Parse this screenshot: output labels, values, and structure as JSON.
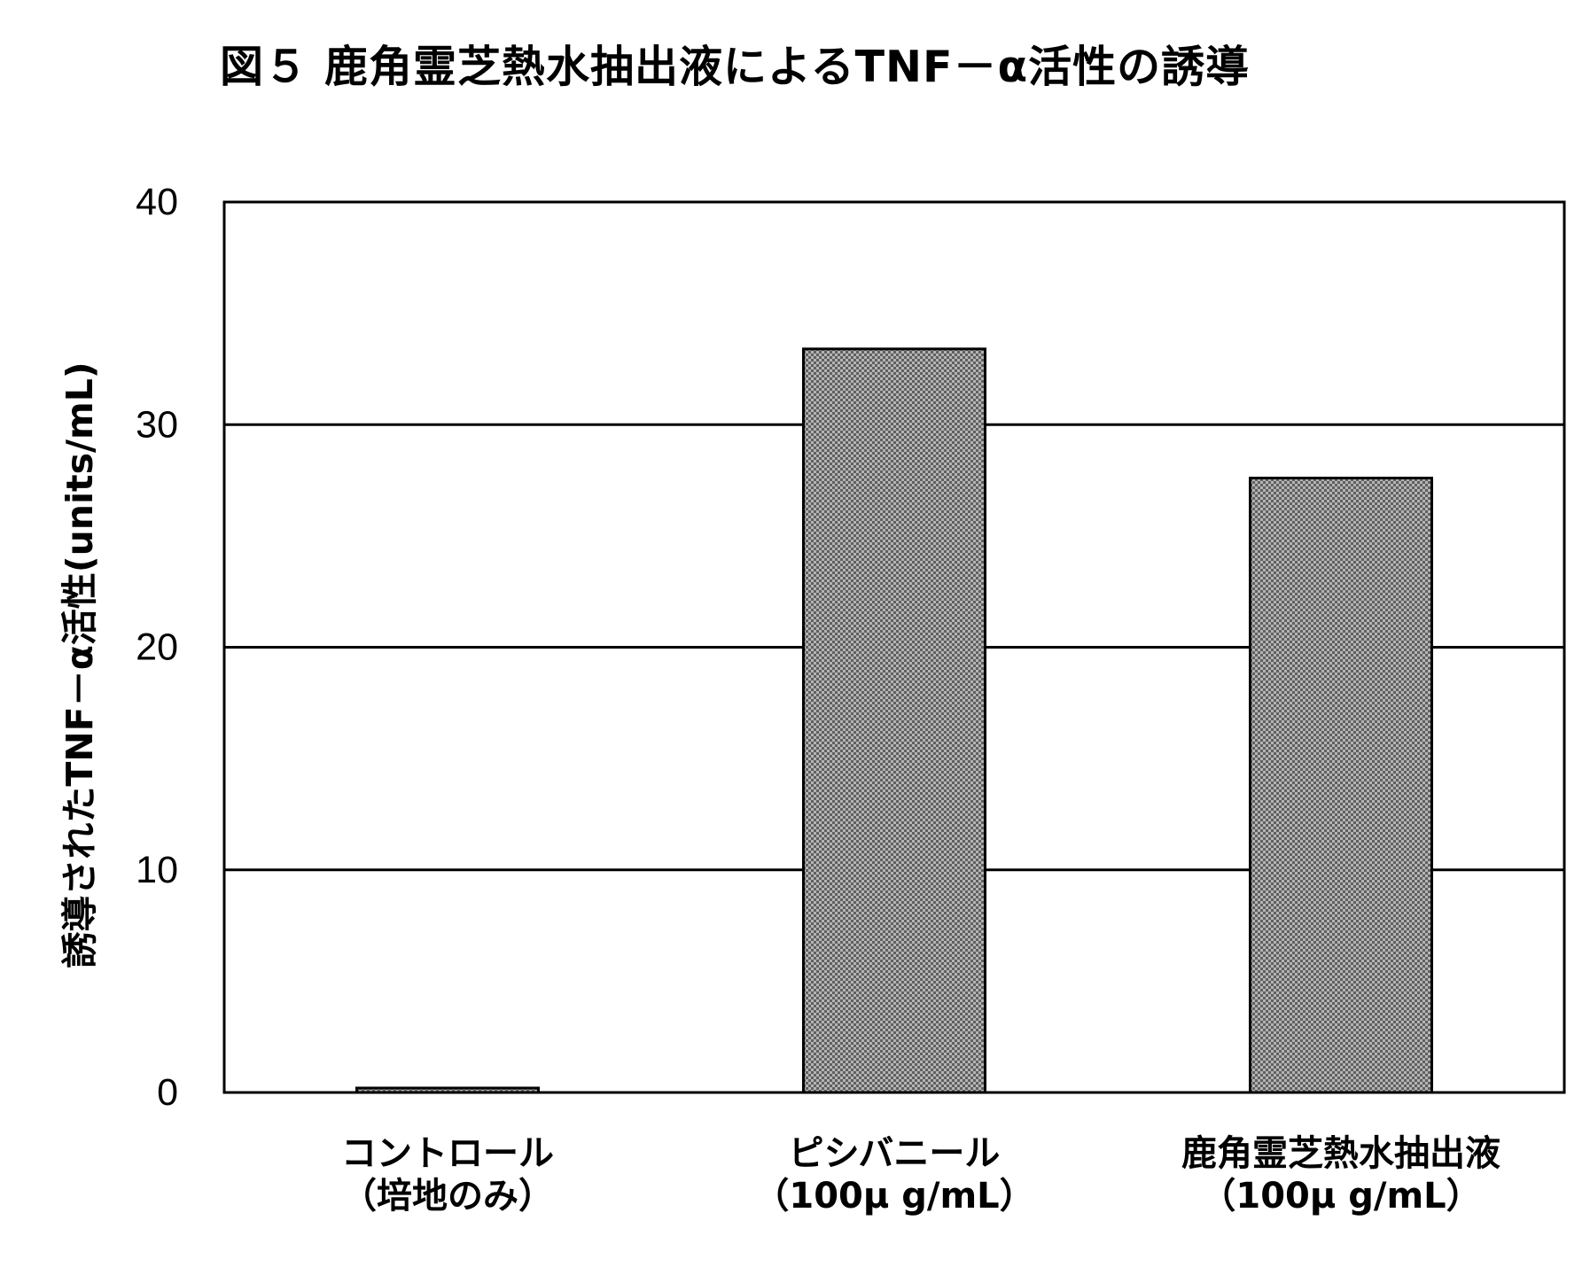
{
  "chart_data": {
    "type": "bar",
    "title": "図５ 鹿角霊芝熱水抽出液によるTNF－α活性の誘導",
    "ylabel": "誘導されたTNF－α活性(units/mL)",
    "xlabel": "",
    "ylim": [
      0,
      40
    ],
    "yticks": [
      0,
      10,
      20,
      30,
      40
    ],
    "grid": true,
    "categories": [
      [
        "コントロール",
        "（培地のみ）"
      ],
      [
        "ピシバニール",
        "（100μ g/mL）"
      ],
      [
        "鹿角霊芝熱水抽出液",
        "（100μ g/mL）"
      ]
    ],
    "values": [
      0.2,
      33.4,
      27.6
    ],
    "bar_fill": "#8c8c8c",
    "bar_pattern": "checkered"
  }
}
